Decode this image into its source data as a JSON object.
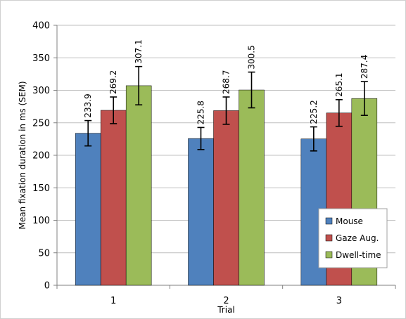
{
  "chart_data": {
    "type": "bar",
    "title": "",
    "xlabel": "Trial",
    "ylabel": "Mean fixation duration in ms (SEM)",
    "categories": [
      "1",
      "2",
      "3"
    ],
    "ylim": [
      0,
      400
    ],
    "yticks": [
      0,
      50,
      100,
      150,
      200,
      250,
      300,
      350,
      400
    ],
    "grid": true,
    "legend_position": "bottom-right",
    "series": [
      {
        "name": "Mouse",
        "color": "#4F81BD",
        "values": [
          233.9,
          225.8,
          225.2
        ],
        "errors": [
          19.5,
          17.0,
          18.5
        ],
        "labels": [
          "233.9",
          "225.8",
          "225.2"
        ]
      },
      {
        "name": "Gaze Aug.",
        "color": "#C0504D",
        "values": [
          269.2,
          268.7,
          265.1
        ],
        "errors": [
          20.5,
          21.0,
          20.5
        ],
        "labels": [
          "269.2",
          "268.7",
          "265.1"
        ]
      },
      {
        "name": "Dwell-time",
        "color": "#9BBB59",
        "values": [
          307.1,
          300.5,
          287.4
        ],
        "errors": [
          29.5,
          27.5,
          26.0
        ],
        "labels": [
          "307.1",
          "300.5",
          "287.4"
        ]
      }
    ]
  }
}
